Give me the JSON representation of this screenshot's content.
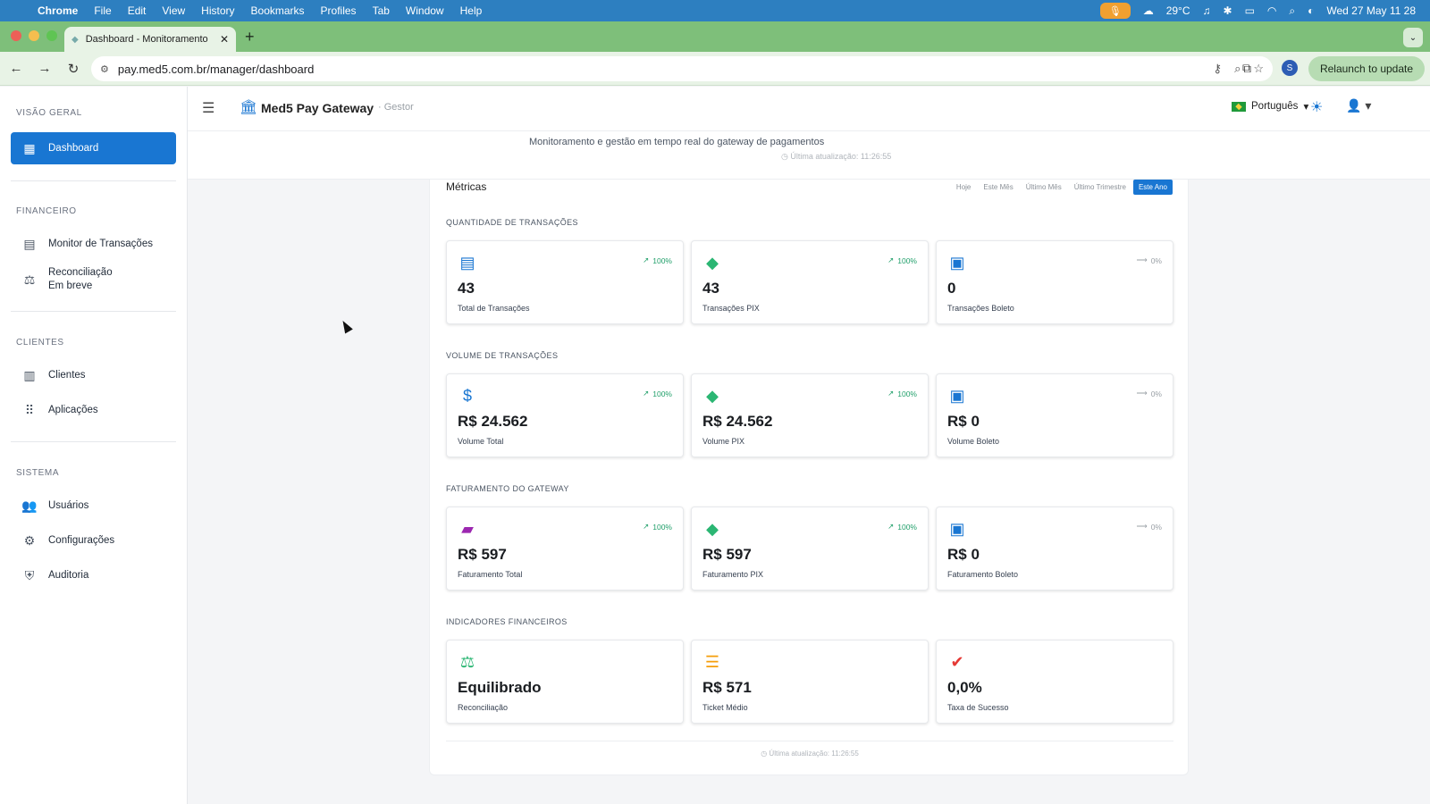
{
  "menubar": {
    "app": "Chrome",
    "items": [
      "File",
      "Edit",
      "View",
      "History",
      "Bookmarks",
      "Profiles",
      "Tab",
      "Window",
      "Help"
    ],
    "weather": "29°C",
    "clock": "Wed 27 May  11 28"
  },
  "browser": {
    "tab_title": "Dashboard - Monitoramento",
    "url": "pay.med5.com.br/manager/dashboard",
    "profile_initial": "S",
    "relaunch_label": "Relaunch to update"
  },
  "sidebar": {
    "sections": [
      {
        "label": "VISÃO GERAL"
      },
      {
        "label": "FINANCEIRO"
      },
      {
        "label": "CLIENTES"
      },
      {
        "label": "SISTEMA"
      }
    ],
    "items": {
      "dashboard": "Dashboard",
      "monitor": "Monitor de Transações",
      "reconciliacao": "Reconciliação",
      "reconciliacao_sub": "Em breve",
      "clientes": "Clientes",
      "aplicacoes": "Aplicações",
      "usuarios": "Usuários",
      "configuracoes": "Configurações",
      "auditoria": "Auditoria"
    }
  },
  "header": {
    "brand": "Med5 Pay Gateway",
    "brand_sub": "· Gestor",
    "language": "Português"
  },
  "subheader": {
    "description": "Monitoramento e gestão em tempo real do gateway de pagamentos",
    "last_update": "Última atualização: 11:26:55"
  },
  "metrics": {
    "title": "Métricas",
    "periods": [
      "Hoje",
      "Este Mês",
      "Último Mês",
      "Último Trimestre",
      "Este Ano"
    ],
    "active_period": "Este Ano",
    "groups": [
      {
        "label": "QUANTIDADE DE TRANSAÇÕES",
        "cards": [
          {
            "value": "43",
            "label": "Total de Transações",
            "trend": "100%",
            "icon": "receipt-icon"
          },
          {
            "value": "43",
            "label": "Transações PIX",
            "trend": "100%",
            "icon": "pix-icon"
          },
          {
            "value": "0",
            "label": "Transações Boleto",
            "trend": "0%",
            "icon": "clipboard-icon"
          }
        ]
      },
      {
        "label": "VOLUME DE TRANSAÇÕES",
        "cards": [
          {
            "value": "R$ 24.562",
            "label": "Volume Total",
            "trend": "100%",
            "icon": "dollar-icon"
          },
          {
            "value": "R$ 24.562",
            "label": "Volume PIX",
            "trend": "100%",
            "icon": "pix-icon"
          },
          {
            "value": "R$ 0",
            "label": "Volume Boleto",
            "trend": "0%",
            "icon": "clipboard-icon"
          }
        ]
      },
      {
        "label": "FATURAMENTO DO GATEWAY",
        "cards": [
          {
            "value": "R$ 597",
            "label": "Faturamento Total",
            "trend": "100%",
            "icon": "wallet-icon"
          },
          {
            "value": "R$ 597",
            "label": "Faturamento PIX",
            "trend": "100%",
            "icon": "pix-icon"
          },
          {
            "value": "R$ 0",
            "label": "Faturamento Boleto",
            "trend": "0%",
            "icon": "clipboard-icon"
          }
        ]
      },
      {
        "label": "INDICADORES FINANCEIROS",
        "cards": [
          {
            "value": "Equilibrado",
            "label": "Reconciliação",
            "icon": "scale-icon"
          },
          {
            "value": "R$ 571",
            "label": "Ticket Médio",
            "icon": "list-icon"
          },
          {
            "value": "0,0%",
            "label": "Taxa de Sucesso",
            "icon": "check-circle-icon"
          }
        ]
      }
    ],
    "footer_update": "Última atualização: 11:26:55"
  },
  "colors": {
    "primary": "#1976d2",
    "positive": "#22a06b",
    "pix": "#2bb673",
    "wallet": "#9c27b0",
    "ticket": "#f59e0b",
    "success_rate": "#e53935"
  }
}
